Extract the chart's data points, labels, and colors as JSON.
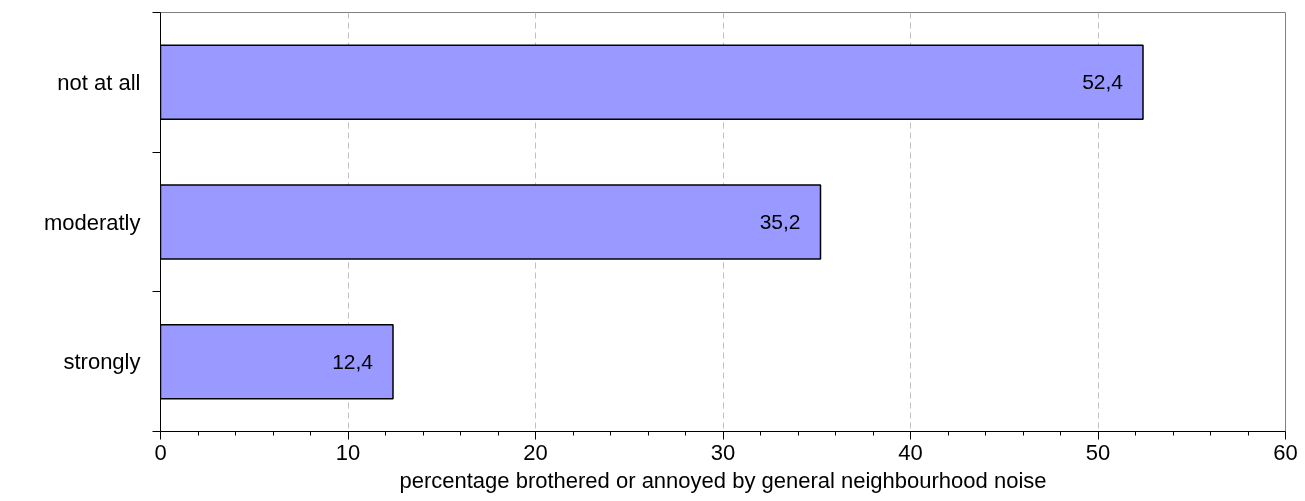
{
  "chart_data": {
    "type": "bar",
    "orientation": "horizontal",
    "categories": [
      "not at all",
      "moderatly",
      "strongly"
    ],
    "values": [
      52.4,
      35.2,
      12.4
    ],
    "value_labels": [
      "52,4",
      "35,2",
      "12,4"
    ],
    "color": "#9999ff",
    "xlabel": "percentage brothered or annoyed by general neighbourhood noise",
    "xlim": [
      0,
      60
    ],
    "xticks": [
      0,
      10,
      20,
      30,
      40,
      50,
      60
    ],
    "grid": "x"
  }
}
